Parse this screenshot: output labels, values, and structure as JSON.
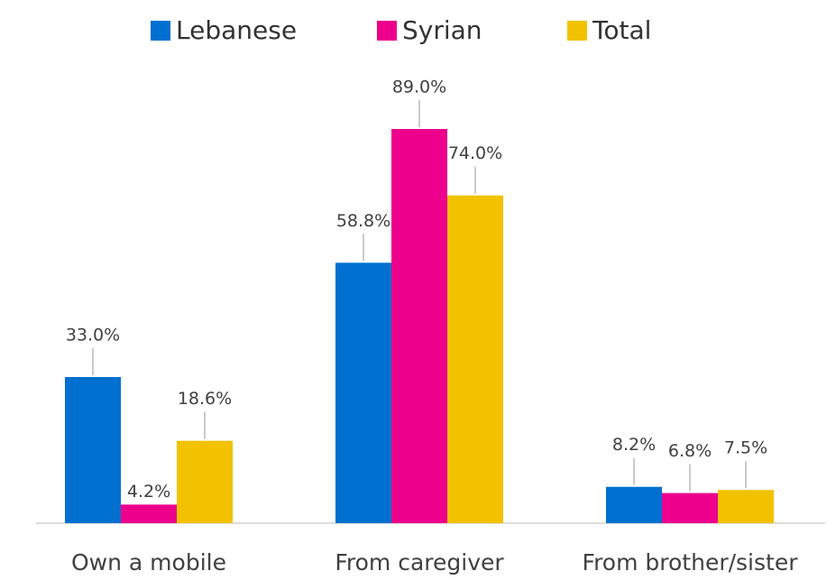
{
  "chart_data": {
    "type": "bar",
    "categories": [
      "Own a mobile",
      "From caregiver",
      "From brother/sister"
    ],
    "series": [
      {
        "name": "Lebanese",
        "color": "#0070d0",
        "values": [
          33.0,
          58.8,
          8.2
        ],
        "value_labels": [
          "33.0%",
          "58.8%",
          "8.2%"
        ]
      },
      {
        "name": "Syrian",
        "color": "#ec008c",
        "values": [
          4.2,
          89.0,
          6.8
        ],
        "value_labels": [
          "4.2%",
          "89.0%",
          "6.8%"
        ]
      },
      {
        "name": "Total",
        "color": "#f2c200",
        "values": [
          18.6,
          74.0,
          7.5
        ],
        "value_labels": [
          "18.6%",
          "74.0%",
          "7.5%"
        ]
      }
    ],
    "legend": "top"
  }
}
